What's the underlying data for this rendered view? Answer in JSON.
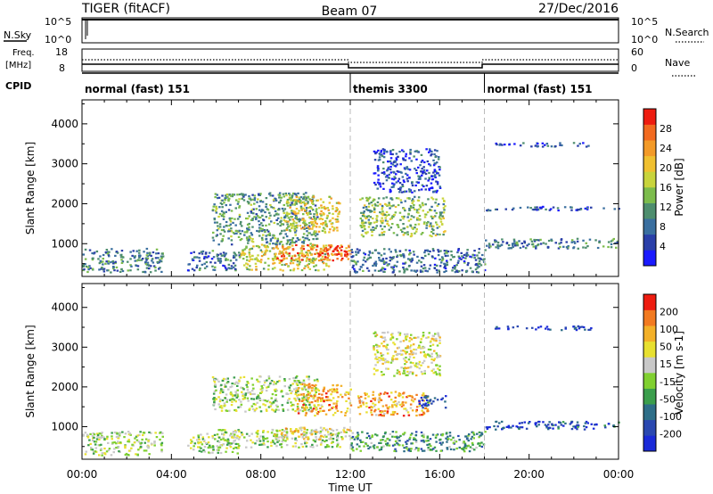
{
  "header": {
    "radar": "TIGER (fitACF)",
    "beam": "Beam 07",
    "date": "27/Dec/2016"
  },
  "top_panels": {
    "nsky": {
      "label": "N.Sky",
      "ticks": [
        "10^5",
        "10^0"
      ]
    },
    "nsearch": {
      "label": "N.Search",
      "ticks": [
        "10^5",
        "10^0"
      ]
    },
    "freq": {
      "label": "Freq.",
      "unit": "[MHz]",
      "ticks": [
        "18",
        "8"
      ]
    },
    "nave": {
      "label": "Nave",
      "ticks": [
        "60",
        "0"
      ]
    },
    "cpid": {
      "label": "CPID",
      "segments": [
        {
          "start_hour": 0,
          "end_hour": 12,
          "text": "normal (fast) 151"
        },
        {
          "start_hour": 12,
          "end_hour": 18,
          "text": "themis 3300"
        },
        {
          "start_hour": 18,
          "end_hour": 24,
          "text": "normal (fast) 151"
        }
      ]
    }
  },
  "x_axis": {
    "label": "Time UT",
    "ticks": [
      "00:00",
      "04:00",
      "08:00",
      "12:00",
      "16:00",
      "20:00",
      "00:00"
    ],
    "range_hours": [
      0,
      24
    ]
  },
  "chart_data": [
    {
      "type": "heatmap",
      "ylabel": "Slant Range [km]",
      "yticks": [
        1000,
        2000,
        3000,
        4000
      ],
      "ylim": [
        180,
        4600
      ],
      "colorbar": {
        "label": "Power [dB]",
        "ticks": [
          "28",
          "24",
          "20",
          "16",
          "12",
          "8",
          "4"
        ],
        "colors": [
          "#1a1aff",
          "#2a3fa8",
          "#3a6f9f",
          "#4e8e6e",
          "#7cbc4c",
          "#c8d43c",
          "#f0c030",
          "#f39a28",
          "#f26a20",
          "#ee1c10"
        ]
      },
      "regions": [
        {
          "hours": [
            0,
            3.6
          ],
          "km": [
            300,
            900
          ],
          "level": 0.3
        },
        {
          "hours": [
            4.7,
            7.0
          ],
          "km": [
            350,
            850
          ],
          "level": 0.25
        },
        {
          "hours": [
            7.0,
            11.0
          ],
          "km": [
            350,
            1000
          ],
          "level": 0.55
        },
        {
          "hours": [
            8.5,
            12.0
          ],
          "km": [
            600,
            1000
          ],
          "level": 0.8
        },
        {
          "hours": [
            10.5,
            12.0
          ],
          "km": [
            700,
            950
          ],
          "level": 0.95
        },
        {
          "hours": [
            5.8,
            10.5
          ],
          "km": [
            1000,
            2300
          ],
          "level": 0.35
        },
        {
          "hours": [
            9.0,
            11.5
          ],
          "km": [
            1300,
            2200
          ],
          "level": 0.6
        },
        {
          "hours": [
            12.0,
            18.0
          ],
          "km": [
            300,
            900
          ],
          "level": 0.25
        },
        {
          "hours": [
            12.4,
            16.2
          ],
          "km": [
            1200,
            2200
          ],
          "level": 0.45
        },
        {
          "hours": [
            13.0,
            16.0
          ],
          "km": [
            2300,
            3400
          ],
          "level": 0.15
        },
        {
          "hours": [
            18.0,
            24.0
          ],
          "km": [
            900,
            1150
          ],
          "level": 0.3
        },
        {
          "hours": [
            18.0,
            24.0
          ],
          "km": [
            1850,
            1950
          ],
          "level": 0.2
        },
        {
          "hours": [
            18.4,
            22.8
          ],
          "km": [
            3450,
            3550
          ],
          "level": 0.15
        }
      ]
    },
    {
      "type": "heatmap",
      "ylabel": "Slant Range [km]",
      "yticks": [
        1000,
        2000,
        3000,
        4000
      ],
      "ylim": [
        180,
        4600
      ],
      "colorbar": {
        "label": "Velocity",
        "unit": "[m s-1]",
        "ticks": [
          "200",
          "100",
          "50",
          "15",
          "-15",
          "-50",
          "-100",
          "-200"
        ],
        "colors": [
          "#1a2ad8",
          "#2a48b0",
          "#2e6e88",
          "#3b9e4c",
          "#80d030",
          "#c8c8c8",
          "#e8e030",
          "#f3b028",
          "#f27a20",
          "#ee1c10"
        ]
      },
      "regions": [
        {
          "hours": [
            0,
            3.6
          ],
          "km": [
            300,
            900
          ],
          "level": 0.5
        },
        {
          "hours": [
            4.7,
            7.0
          ],
          "km": [
            350,
            850
          ],
          "level": 0.5
        },
        {
          "hours": [
            6.0,
            11.5
          ],
          "km": [
            500,
            950
          ],
          "level": 0.5
        },
        {
          "hours": [
            8.5,
            12.0
          ],
          "km": [
            700,
            1000
          ],
          "level": 0.65
        },
        {
          "hours": [
            5.8,
            10.5
          ],
          "km": [
            1400,
            2300
          ],
          "level": 0.5
        },
        {
          "hours": [
            9.5,
            12.0
          ],
          "km": [
            1300,
            2100
          ],
          "level": 0.75
        },
        {
          "hours": [
            12.3,
            15.5
          ],
          "km": [
            1300,
            1900
          ],
          "level": 0.75
        },
        {
          "hours": [
            15.0,
            16.3
          ],
          "km": [
            1500,
            1800
          ],
          "level": 0.15
        },
        {
          "hours": [
            12.0,
            18.0
          ],
          "km": [
            400,
            900
          ],
          "level": 0.35
        },
        {
          "hours": [
            13.0,
            16.0
          ],
          "km": [
            2300,
            3400
          ],
          "level": 0.6
        },
        {
          "hours": [
            18.0,
            24.0
          ],
          "km": [
            950,
            1150
          ],
          "level": 0.15
        },
        {
          "hours": [
            18.4,
            22.8
          ],
          "km": [
            3450,
            3550
          ],
          "level": 0.1
        }
      ]
    }
  ]
}
